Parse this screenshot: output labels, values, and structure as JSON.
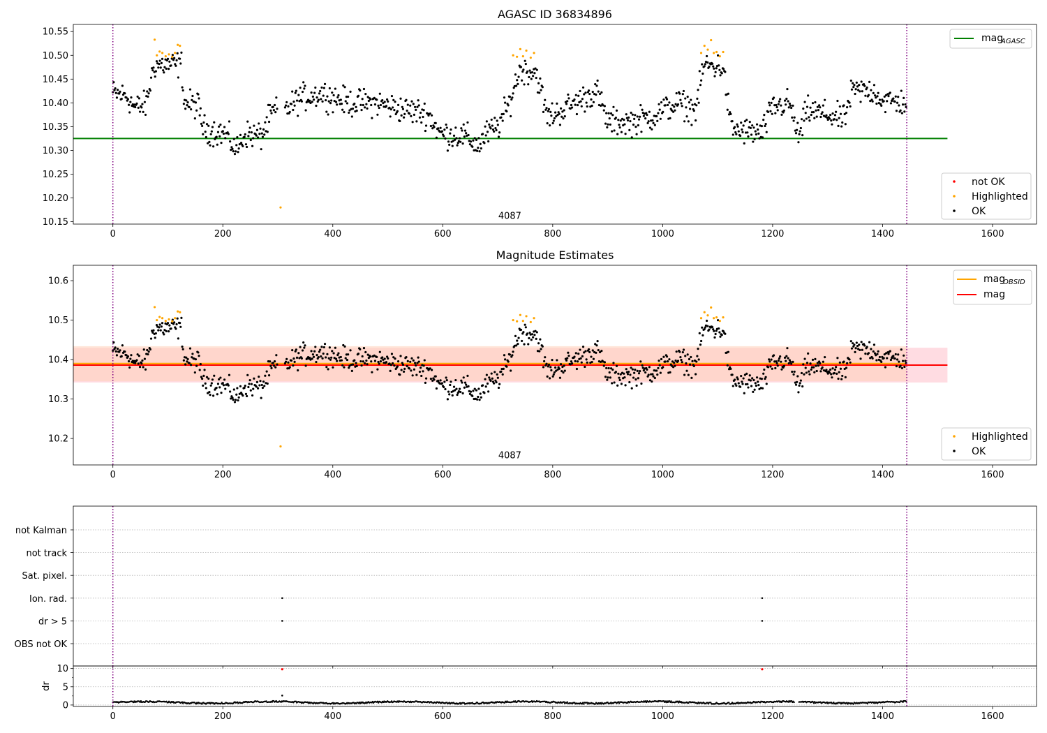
{
  "chart_data": [
    {
      "type": "scatter",
      "title": "AGASC ID 36834896",
      "xlim": [
        -72,
        1680
      ],
      "ylim": [
        10.145,
        10.565
      ],
      "x_ticks": [
        0,
        200,
        400,
        600,
        800,
        1000,
        1200,
        1400,
        1600
      ],
      "y_ticks": [
        "10.15",
        "10.20",
        "10.25",
        "10.30",
        "10.35",
        "10.40",
        "10.45",
        "10.50",
        "10.55"
      ],
      "vlines": [
        0,
        1444
      ],
      "annotation": {
        "text": "4087",
        "x": 722,
        "y": 10.162
      },
      "hlines": [
        {
          "name": "mag",
          "subscript": "AGASC",
          "y": 10.325,
          "x_range": [
            -72,
            1518
          ],
          "color": "#008000"
        }
      ],
      "legend_lines": [
        {
          "name": "mag",
          "subscript": "AGASC",
          "color": "#008000"
        }
      ],
      "legend_points": [
        {
          "name": "not OK",
          "color": "#ff0000"
        },
        {
          "name": "Highlighted",
          "color": "#ffa500"
        },
        {
          "name": "OK",
          "color": "#000000"
        }
      ],
      "highlighted_points": [
        [
          76,
          10.533
        ],
        [
          80,
          10.5
        ],
        [
          85,
          10.508
        ],
        [
          90,
          10.505
        ],
        [
          96,
          10.498
        ],
        [
          102,
          10.502
        ],
        [
          108,
          10.497
        ],
        [
          113,
          10.505
        ],
        [
          118,
          10.522
        ],
        [
          122,
          10.52
        ],
        [
          305,
          10.18
        ],
        [
          728,
          10.5
        ],
        [
          735,
          10.497
        ],
        [
          741,
          10.513
        ],
        [
          746,
          10.498
        ],
        [
          752,
          10.51
        ],
        [
          760,
          10.495
        ],
        [
          766,
          10.505
        ],
        [
          1070,
          10.505
        ],
        [
          1076,
          10.52
        ],
        [
          1082,
          10.512
        ],
        [
          1088,
          10.532
        ],
        [
          1093,
          10.505
        ],
        [
          1098,
          10.507
        ],
        [
          1104,
          10.498
        ],
        [
          1110,
          10.507
        ]
      ],
      "ok_trend": [
        [
          0,
          10.42
        ],
        [
          25,
          10.415
        ],
        [
          40,
          10.39
        ],
        [
          60,
          10.395
        ],
        [
          75,
          10.48
        ],
        [
          125,
          10.48
        ],
        [
          130,
          10.4
        ],
        [
          155,
          10.395
        ],
        [
          165,
          10.345
        ],
        [
          185,
          10.34
        ],
        [
          205,
          10.335
        ],
        [
          225,
          10.3
        ],
        [
          240,
          10.335
        ],
        [
          270,
          10.33
        ],
        [
          290,
          10.38
        ],
        [
          320,
          10.39
        ],
        [
          340,
          10.41
        ],
        [
          380,
          10.42
        ],
        [
          430,
          10.4
        ],
        [
          480,
          10.4
        ],
        [
          530,
          10.385
        ],
        [
          560,
          10.38
        ],
        [
          575,
          10.375
        ],
        [
          595,
          10.335
        ],
        [
          640,
          10.33
        ],
        [
          665,
          10.31
        ],
        [
          680,
          10.335
        ],
        [
          700,
          10.35
        ],
        [
          720,
          10.395
        ],
        [
          740,
          10.47
        ],
        [
          770,
          10.465
        ],
        [
          790,
          10.37
        ],
        [
          810,
          10.38
        ],
        [
          840,
          10.4
        ],
        [
          880,
          10.425
        ],
        [
          900,
          10.36
        ],
        [
          940,
          10.36
        ],
        [
          980,
          10.37
        ],
        [
          1000,
          10.385
        ],
        [
          1030,
          10.4
        ],
        [
          1060,
          10.385
        ],
        [
          1075,
          10.48
        ],
        [
          1110,
          10.475
        ],
        [
          1125,
          10.345
        ],
        [
          1180,
          10.335
        ],
        [
          1200,
          10.39
        ],
        [
          1230,
          10.4
        ],
        [
          1248,
          10.325
        ],
        [
          1262,
          10.385
        ],
        [
          1300,
          10.375
        ],
        [
          1330,
          10.365
        ],
        [
          1345,
          10.425
        ],
        [
          1385,
          10.425
        ],
        [
          1400,
          10.405
        ],
        [
          1444,
          10.4
        ]
      ],
      "ok_spread": 0.028
    },
    {
      "type": "scatter",
      "title": "Magnitude Estimates",
      "xlim": [
        -72,
        1680
      ],
      "ylim": [
        10.133,
        10.639
      ],
      "x_ticks": [
        0,
        200,
        400,
        600,
        800,
        1000,
        1200,
        1400,
        1600
      ],
      "y_ticks": [
        "10.2",
        "10.3",
        "10.4",
        "10.5",
        "10.6"
      ],
      "vlines": [
        0,
        1444
      ],
      "annotation": {
        "text": "4087",
        "x": 722,
        "y": 10.157
      },
      "bands": [
        {
          "y_range": [
            10.342,
            10.43
          ],
          "x_range": [
            -72,
            1518
          ],
          "color": "#ffc0cb"
        },
        {
          "y_range": [
            10.345,
            10.434
          ],
          "x_range": [
            -72,
            1444
          ],
          "color": "#ffd2ba"
        }
      ],
      "hlines": [
        {
          "name": "mag",
          "subscript": "OBSID",
          "y": 10.39,
          "x_range": [
            -72,
            1444
          ],
          "color": "#ffa500"
        },
        {
          "name": "mag",
          "y": 10.386,
          "x_range": [
            -72,
            1518
          ],
          "color": "#ff0000"
        }
      ],
      "legend_lines": [
        {
          "name": "mag",
          "subscript": "OBSID",
          "color": "#ffa500"
        },
        {
          "name": "mag",
          "color": "#ff0000"
        }
      ],
      "legend_points": [
        {
          "name": "Highlighted",
          "color": "#ffa500"
        },
        {
          "name": "OK",
          "color": "#000000"
        }
      ],
      "highlighted_points": [
        [
          76,
          10.533
        ],
        [
          80,
          10.5
        ],
        [
          85,
          10.508
        ],
        [
          90,
          10.505
        ],
        [
          96,
          10.498
        ],
        [
          102,
          10.502
        ],
        [
          108,
          10.497
        ],
        [
          113,
          10.505
        ],
        [
          118,
          10.522
        ],
        [
          122,
          10.52
        ],
        [
          305,
          10.18
        ],
        [
          728,
          10.5
        ],
        [
          735,
          10.497
        ],
        [
          741,
          10.513
        ],
        [
          746,
          10.498
        ],
        [
          752,
          10.51
        ],
        [
          760,
          10.495
        ],
        [
          766,
          10.505
        ],
        [
          1070,
          10.505
        ],
        [
          1076,
          10.52
        ],
        [
          1082,
          10.512
        ],
        [
          1088,
          10.532
        ],
        [
          1093,
          10.505
        ],
        [
          1098,
          10.507
        ],
        [
          1104,
          10.498
        ],
        [
          1110,
          10.507
        ]
      ],
      "ok_trend_ref": 0,
      "ok_spread": 0.028
    },
    {
      "type": "scatter",
      "title": "",
      "xlim": [
        -72,
        1680
      ],
      "x_ticks": [
        0,
        200,
        400,
        600,
        800,
        1000,
        1200,
        1400,
        1600
      ],
      "vlines": [
        0,
        1444
      ],
      "flag_rows": [
        "not Kalman",
        "not track",
        "Sat. pixel.",
        "Ion. rad.",
        "dr > 5",
        "OBS not OK"
      ],
      "flag_points": [
        {
          "row": "Ion. rad.",
          "x": 308
        },
        {
          "row": "dr > 5",
          "x": 308
        },
        {
          "row": "Ion. rad.",
          "x": 1181
        },
        {
          "row": "dr > 5",
          "x": 1181
        }
      ]
    },
    {
      "type": "line",
      "title": "",
      "ylabel": "dr",
      "xlim": [
        -72,
        1680
      ],
      "ylim": [
        -0.4,
        10.7
      ],
      "y_ticks": [
        "0",
        "5",
        "10"
      ],
      "x_ticks": [
        0,
        200,
        400,
        600,
        800,
        1000,
        1200,
        1400,
        1600
      ],
      "vlines": [
        0,
        1444
      ],
      "baseline": 0.7,
      "outliers": [
        {
          "x": 308,
          "y": 2.6
        }
      ],
      "not_ok_markers": [
        {
          "x": 308,
          "y": 9.8
        },
        {
          "x": 1181,
          "y": 9.8
        }
      ],
      "gaps": [
        [
          1240,
          1247
        ]
      ]
    }
  ]
}
